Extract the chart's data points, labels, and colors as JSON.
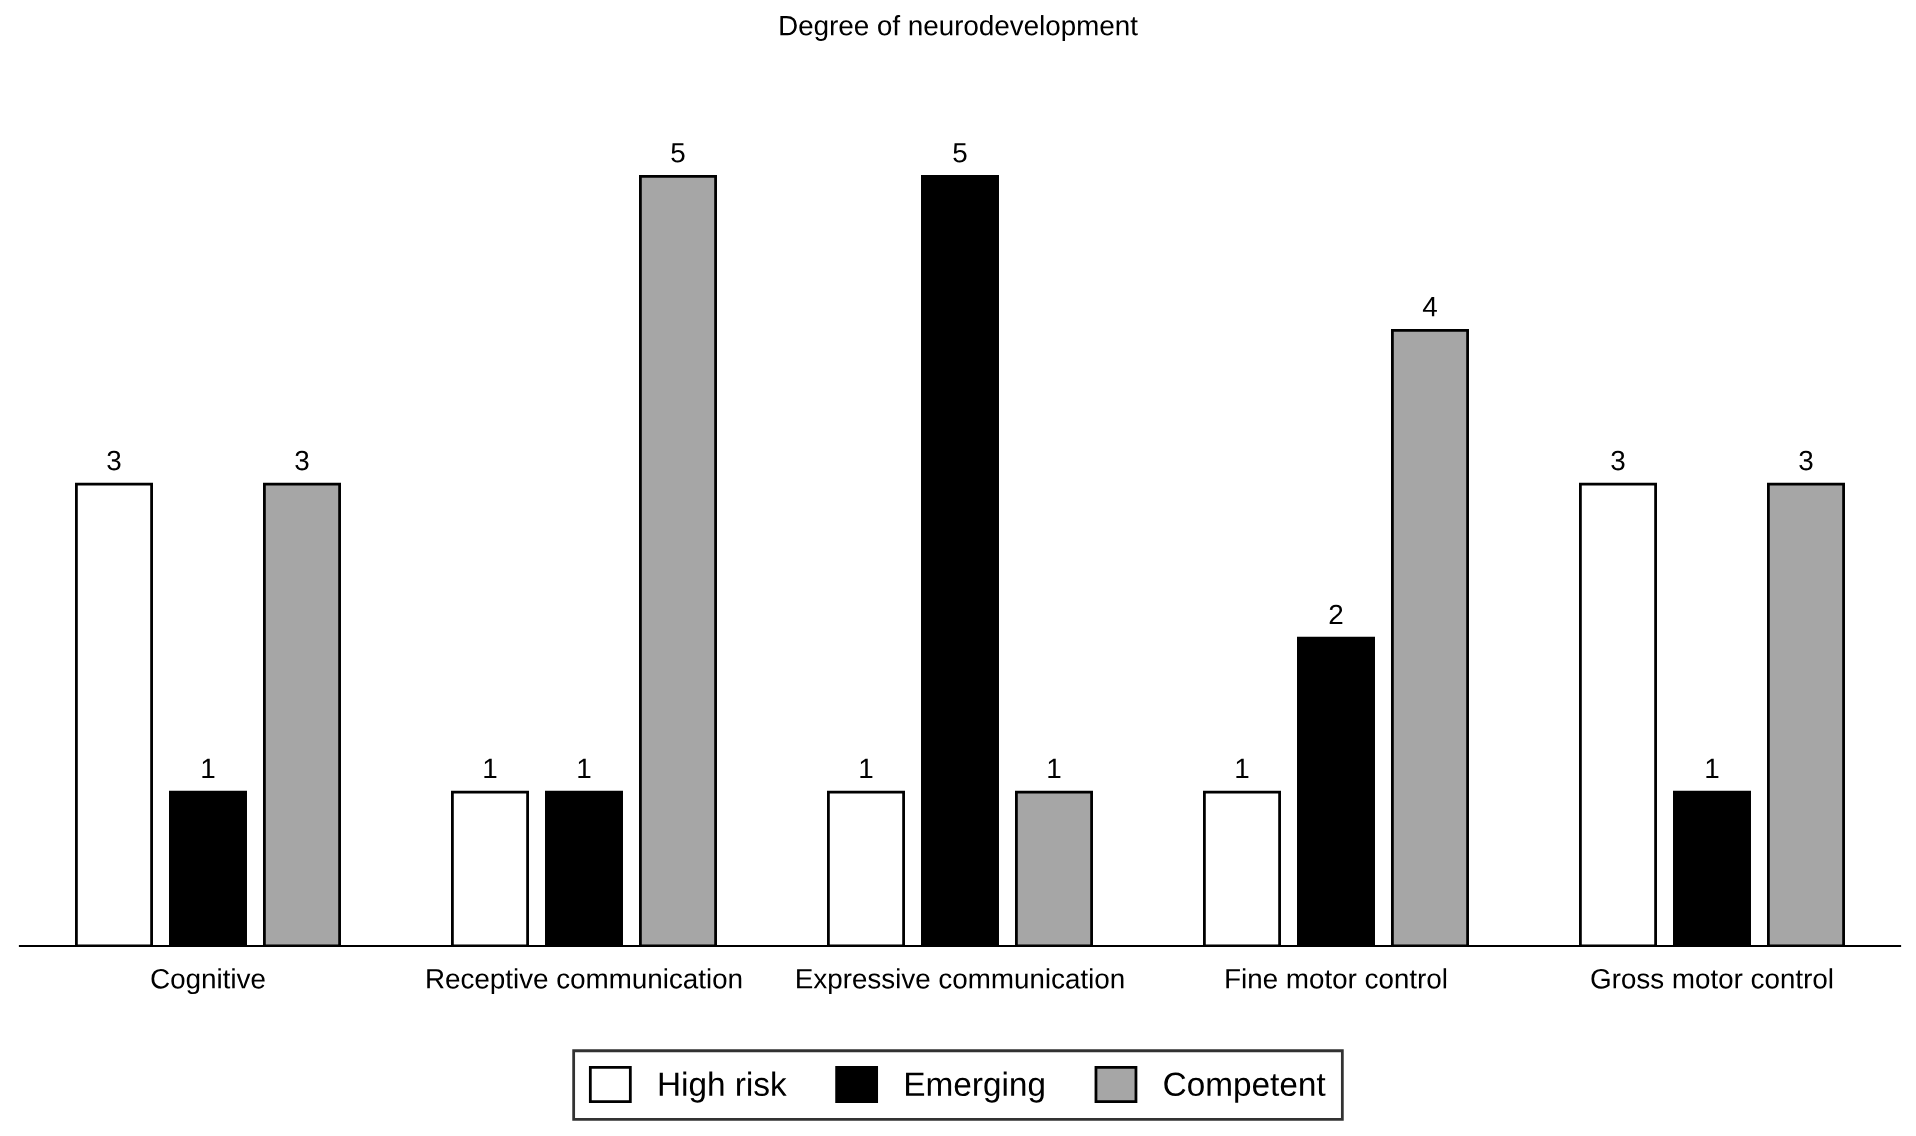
{
  "chart_data": {
    "type": "bar",
    "title": "Degree of neurodevelopment",
    "categories": [
      "Cognitive",
      "Receptive communication",
      "Expressive communication",
      "Fine motor control",
      "Gross motor control"
    ],
    "series": [
      {
        "name": "High risk",
        "color": "#ffffff",
        "values": [
          3,
          1,
          1,
          1,
          3
        ]
      },
      {
        "name": "Emerging",
        "color": "#000000",
        "values": [
          1,
          1,
          5,
          2,
          1
        ]
      },
      {
        "name": "Competent",
        "color": "#a6a6a6",
        "values": [
          3,
          5,
          1,
          4,
          3
        ]
      }
    ],
    "data_labels": true,
    "grid": false,
    "legend": "bottom"
  }
}
